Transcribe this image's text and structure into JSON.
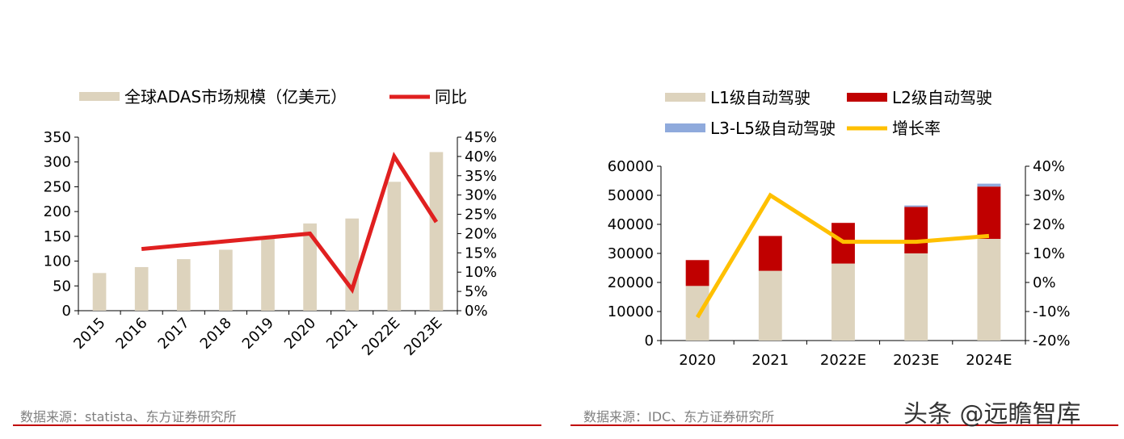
{
  "chart_data": [
    {
      "type": "bar",
      "categories": [
        "2015",
        "2016",
        "2017",
        "2018",
        "2019",
        "2020",
        "2021",
        "2022E",
        "2023E"
      ],
      "series": [
        {
          "name": "全球ADAS市场规模（亿美元）",
          "kind": "bar",
          "axis": "left",
          "color": "#ddd3bd",
          "values": [
            76,
            88,
            104,
            123,
            150,
            176,
            186,
            260,
            320
          ]
        },
        {
          "name": "同比",
          "kind": "line",
          "axis": "right",
          "color": "#e02020",
          "values": [
            null,
            16,
            17,
            18,
            19,
            20,
            5.5,
            40,
            23
          ]
        }
      ],
      "ylim": [
        0,
        350
      ],
      "yticks": [
        "0",
        "50",
        "100",
        "150",
        "200",
        "250",
        "300",
        "350"
      ],
      "y2lim": [
        0,
        45
      ],
      "y2ticks": [
        "0%",
        "5%",
        "10%",
        "15%",
        "20%",
        "25%",
        "30%",
        "35%",
        "40%",
        "45%"
      ],
      "legend": "top"
    },
    {
      "type": "bar",
      "stacked": true,
      "categories": [
        "2020",
        "2021",
        "2022E",
        "2023E",
        "2024E"
      ],
      "series": [
        {
          "name": "L1级自动驾驶",
          "kind": "bar",
          "axis": "left",
          "color": "#ddd3bd",
          "values": [
            18800,
            24000,
            26500,
            30000,
            35000
          ]
        },
        {
          "name": "L2级自动驾驶",
          "kind": "bar",
          "axis": "left",
          "color": "#c00000",
          "values": [
            8900,
            12000,
            14000,
            16000,
            18000
          ]
        },
        {
          "name": "L3-L5级自动驾驶",
          "kind": "bar",
          "axis": "left",
          "color": "#8faadc",
          "values": [
            0,
            0,
            0,
            500,
            1000
          ]
        },
        {
          "name": "增长率",
          "kind": "line",
          "axis": "right",
          "color": "#ffc000",
          "values": [
            -12,
            30,
            14,
            14,
            16
          ]
        }
      ],
      "ylim": [
        0,
        60000
      ],
      "yticks": [
        "0",
        "10000",
        "20000",
        "30000",
        "40000",
        "50000",
        "60000"
      ],
      "y2lim": [
        -20,
        40
      ],
      "y2ticks": [
        "-20%",
        "-10%",
        "0%",
        "10%",
        "20%",
        "30%",
        "40%"
      ],
      "legend": "top"
    }
  ],
  "footer": {
    "source_left": "数据来源：statista、东方证券研究所",
    "source_right": "数据来源：IDC、东方证券研究所",
    "watermark": "头条 @远瞻智库"
  },
  "colors": {
    "rule": "#c00000",
    "axis": "#000000",
    "source_text": "#7f7f7f"
  }
}
